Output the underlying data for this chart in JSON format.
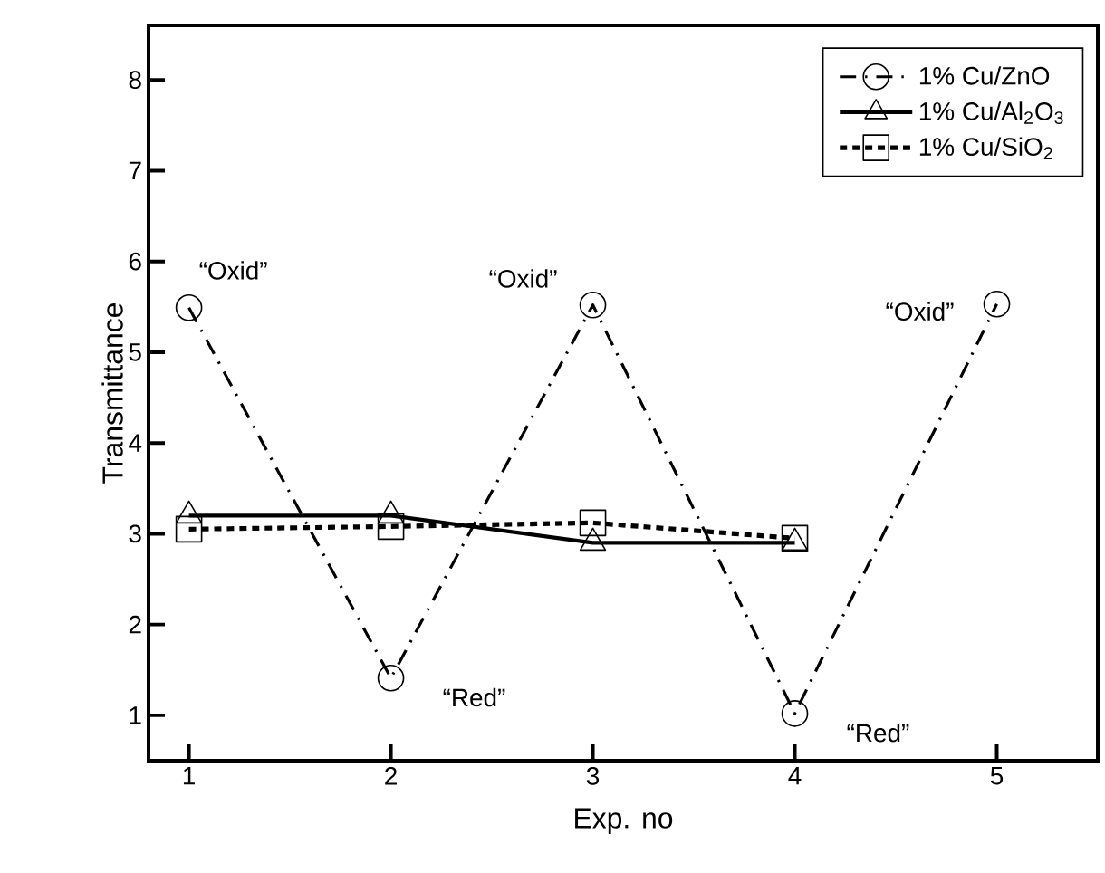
{
  "chart_data": {
    "type": "line",
    "xlabel": "Exp. no",
    "ylabel": "Transmittance",
    "x": [
      1,
      2,
      3,
      4,
      5
    ],
    "series": [
      {
        "name": "1% Cu/ZnO",
        "color": "#000000",
        "marker": "circle",
        "line_style": "dashdot",
        "values": [
          5.49,
          1.41,
          5.52,
          1.02,
          5.53
        ]
      },
      {
        "name": "1% Cu/Al$_{2}$O$_{3}$",
        "color": "#000000",
        "marker": "triangle",
        "line_style": "solid",
        "values": [
          3.2,
          3.2,
          2.9,
          2.9,
          null
        ]
      },
      {
        "name": "1% Cu/SiO$_{2}$",
        "color": "#000000",
        "marker": "square",
        "line_style": "dotted",
        "values": [
          3.05,
          3.08,
          3.12,
          2.95,
          null
        ]
      }
    ],
    "xlim": [
      0.8,
      5.5
    ],
    "ylim": [
      0.5,
      8.6
    ],
    "xticks": [
      1,
      2,
      3,
      4,
      5
    ],
    "yticks": [
      1,
      2,
      3,
      4,
      5,
      6,
      7,
      8
    ],
    "grid": false,
    "legend": "top right",
    "annotations": [
      {
        "text": "“Oxid”",
        "x": 1,
        "y": 5.49
      },
      {
        "text": "“Oxid”",
        "x": 3,
        "y": 5.52
      },
      {
        "text": "“Oxid”",
        "x": 5,
        "y": 5.53
      },
      {
        "text": "“Red”",
        "x": 2,
        "y": 1.41
      },
      {
        "text": "“Red”",
        "x": 4,
        "y": 1.02
      }
    ]
  }
}
